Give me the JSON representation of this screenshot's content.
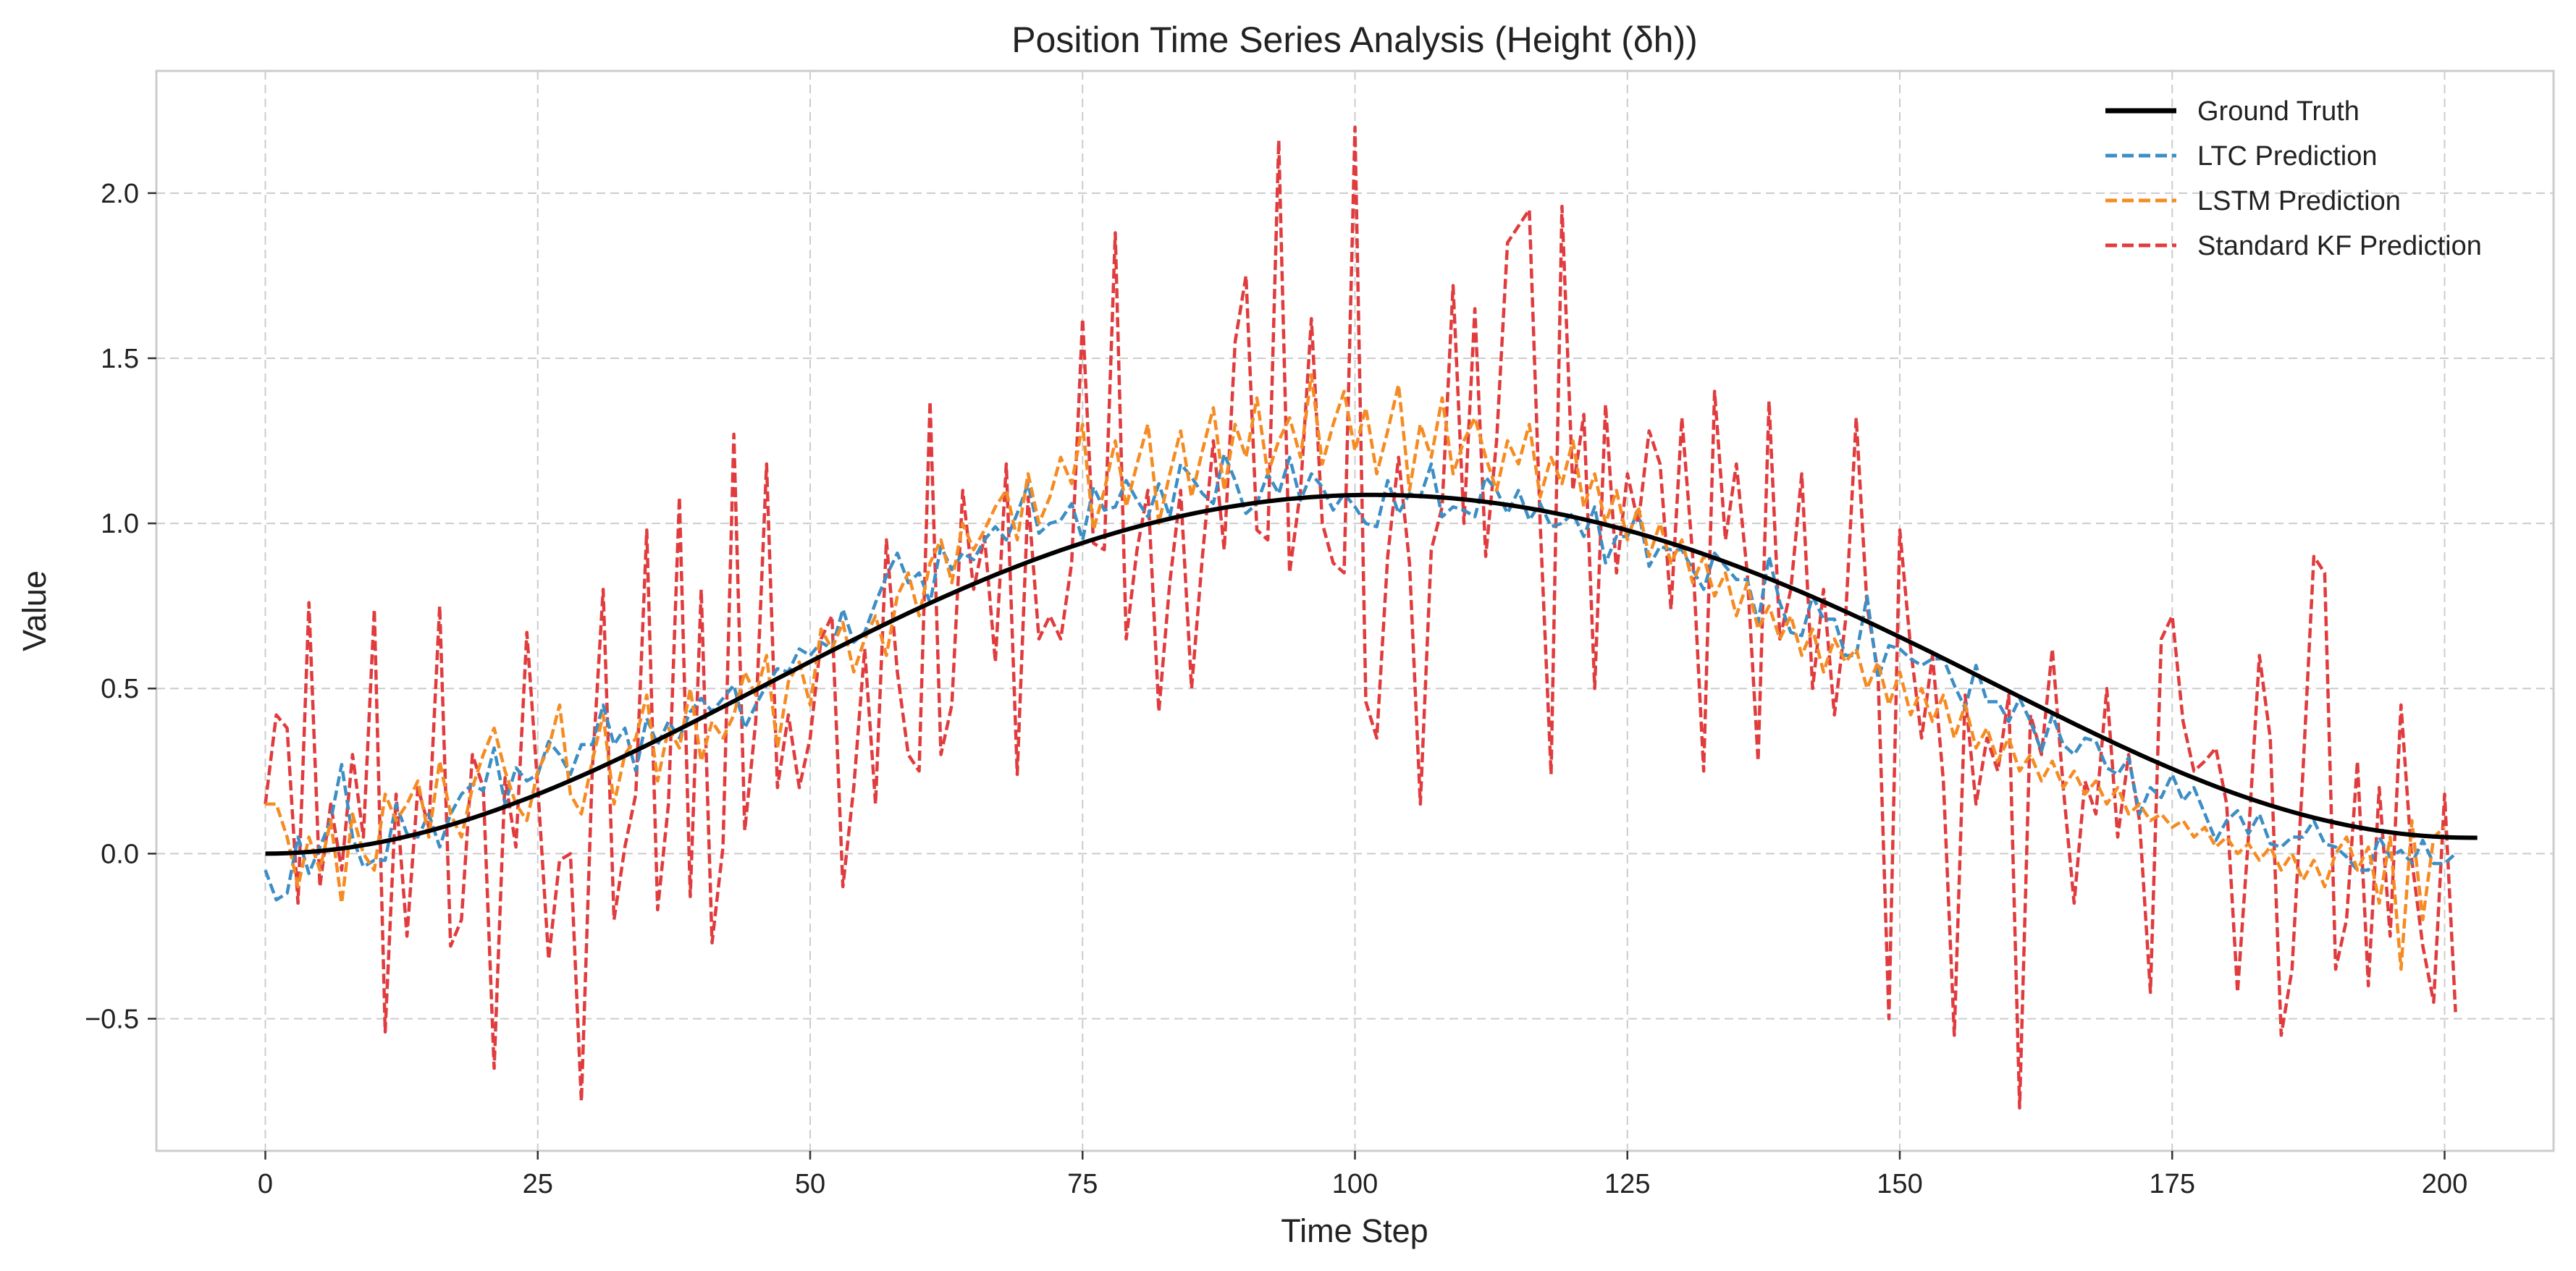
{
  "chart_data": {
    "type": "line",
    "title": "Position Time Series Analysis (Height (δh))",
    "xlabel": "Time Step",
    "ylabel": "Value",
    "xlim": [
      -10,
      210
    ],
    "ylim": [
      -0.9,
      2.37
    ],
    "xticks": [
      0,
      25,
      50,
      75,
      100,
      125,
      150,
      175,
      200
    ],
    "yticks": [
      -0.5,
      0.0,
      0.5,
      1.0,
      1.5,
      2.0
    ],
    "ytick_labels": [
      "−0.5",
      "0.0",
      "0.5",
      "1.0",
      "1.5",
      "2.0"
    ],
    "grid": true,
    "legend_position": "top-right",
    "series": [
      {
        "name": "Ground Truth",
        "color": "#000000",
        "style": "solid",
        "x_start": 0,
        "x_step": 1,
        "values": [
          0.0,
          0.0003,
          0.0013,
          0.0029,
          0.0051,
          0.008,
          0.0115,
          0.0155,
          0.0202,
          0.0255,
          0.0313,
          0.0377,
          0.0446,
          0.0521,
          0.0601,
          0.0686,
          0.0777,
          0.0872,
          0.0972,
          0.1077,
          0.1187,
          0.1301,
          0.1419,
          0.1541,
          0.1668,
          0.1798,
          0.1932,
          0.207,
          0.2211,
          0.2355,
          0.2503,
          0.2653,
          0.2806,
          0.2962,
          0.312,
          0.328,
          0.3442,
          0.3606,
          0.3771,
          0.3938,
          0.4106,
          0.4275,
          0.4445,
          0.4615,
          0.4786,
          0.4957,
          0.5129,
          0.53,
          0.547,
          0.5641,
          0.5811,
          0.598,
          0.6148,
          0.6315,
          0.648,
          0.6644,
          0.6806,
          0.6966,
          0.7125,
          0.7281,
          0.7435,
          0.7587,
          0.7736,
          0.7883,
          0.8027,
          0.8168,
          0.8306,
          0.8442,
          0.8574,
          0.8703,
          0.8829,
          0.8952,
          0.9071,
          0.9187,
          0.9299,
          0.9408,
          0.9513,
          0.9614,
          0.9712,
          0.9806,
          0.9896,
          0.9982,
          1.0064,
          1.0143,
          1.0217,
          1.0288,
          1.0354,
          1.0417,
          1.0475,
          1.0529,
          1.0579,
          1.0626,
          1.0668,
          1.0706,
          1.074,
          1.0769,
          1.0795,
          1.0816,
          1.0834,
          1.0847,
          1.0856,
          1.0861,
          1.0862,
          1.0859,
          1.0852,
          1.0841,
          1.0826,
          1.0807,
          1.0784,
          1.0757,
          1.0726,
          1.069,
          1.0651,
          1.0608,
          1.0561,
          1.051,
          1.0455,
          1.0396,
          1.0333,
          1.0267,
          1.0197,
          1.0123,
          1.0045,
          0.9963,
          0.9878,
          0.9789,
          0.9697,
          0.9601,
          0.9501,
          0.9398,
          0.9292,
          0.9182,
          0.9069,
          0.8953,
          0.8833,
          0.8711,
          0.8585,
          0.8457,
          0.8325,
          0.8191,
          0.8054,
          0.7915,
          0.7773,
          0.7628,
          0.7482,
          0.7333,
          0.7182,
          0.7029,
          0.6874,
          0.6717,
          0.6559,
          0.6399,
          0.6238,
          0.6076,
          0.5912,
          0.5748,
          0.5583,
          0.5417,
          0.5251,
          0.5085,
          0.4919,
          0.4753,
          0.4587,
          0.4422,
          0.4258,
          0.4095,
          0.3933,
          0.3773,
          0.3614,
          0.3457,
          0.3302,
          0.315,
          0.2999,
          0.2852,
          0.2707,
          0.2566,
          0.2428,
          0.2293,
          0.2162,
          0.2034,
          0.1911,
          0.1792,
          0.1677,
          0.1567,
          0.1461,
          0.1361,
          0.1265,
          0.1174,
          0.1089,
          0.1009,
          0.0934,
          0.0865,
          0.0801,
          0.0743,
          0.0691,
          0.0645,
          0.0604,
          0.0569,
          0.054,
          0.0517,
          0.0499,
          0.0487,
          0.0481,
          0.048
        ]
      },
      {
        "name": "LTC Prediction",
        "color": "#3d8ec4",
        "style": "dashed",
        "x_start": 0,
        "x_step": 1,
        "values": [
          -0.05,
          -0.14,
          -0.12,
          0.05,
          -0.06,
          0.02,
          0.1,
          0.27,
          0.05,
          -0.04,
          -0.02,
          -0.02,
          0.15,
          0.06,
          0.05,
          0.12,
          0.02,
          0.12,
          0.18,
          0.21,
          0.19,
          0.32,
          0.15,
          0.26,
          0.22,
          0.24,
          0.34,
          0.3,
          0.24,
          0.33,
          0.33,
          0.45,
          0.33,
          0.38,
          0.25,
          0.41,
          0.33,
          0.4,
          0.35,
          0.43,
          0.47,
          0.43,
          0.47,
          0.51,
          0.38,
          0.45,
          0.51,
          0.56,
          0.55,
          0.62,
          0.6,
          0.64,
          0.62,
          0.74,
          0.64,
          0.67,
          0.76,
          0.84,
          0.91,
          0.82,
          0.85,
          0.76,
          0.93,
          0.86,
          0.91,
          0.89,
          0.95,
          0.99,
          0.95,
          1.03,
          1.12,
          0.97,
          1.0,
          1.01,
          1.06,
          0.95,
          1.11,
          1.04,
          1.05,
          1.13,
          1.07,
          1.02,
          1.12,
          1.02,
          1.18,
          1.14,
          1.09,
          1.06,
          1.21,
          1.13,
          1.03,
          1.06,
          1.15,
          1.09,
          1.2,
          1.07,
          1.15,
          1.11,
          1.04,
          1.09,
          1.05,
          1.0,
          0.99,
          1.13,
          1.03,
          1.09,
          1.08,
          1.18,
          1.02,
          1.05,
          1.04,
          1.02,
          1.14,
          1.1,
          1.03,
          1.1,
          1.01,
          1.06,
          0.99,
          1.0,
          1.03,
          0.96,
          1.05,
          0.88,
          0.96,
          0.96,
          1.04,
          0.87,
          0.93,
          0.92,
          0.92,
          0.86,
          0.8,
          0.91,
          0.87,
          0.83,
          0.83,
          0.7,
          0.9,
          0.76,
          0.67,
          0.66,
          0.78,
          0.71,
          0.71,
          0.6,
          0.6,
          0.78,
          0.53,
          0.63,
          0.62,
          0.59,
          0.57,
          0.59,
          0.59,
          0.51,
          0.44,
          0.57,
          0.46,
          0.46,
          0.4,
          0.47,
          0.4,
          0.31,
          0.42,
          0.33,
          0.3,
          0.35,
          0.34,
          0.26,
          0.24,
          0.29,
          0.12,
          0.2,
          0.17,
          0.24,
          0.16,
          0.2,
          0.12,
          0.04,
          0.1,
          0.13,
          0.06,
          0.12,
          0.03,
          0.02,
          0.05,
          0.05,
          0.1,
          0.03,
          0.02,
          -0.01,
          -0.05,
          -0.05,
          0.05,
          -0.01,
          0.01,
          -0.03,
          0.04,
          -0.03,
          -0.03,
          0.0
        ]
      },
      {
        "name": "LSTM Prediction",
        "color": "#f58c23",
        "style": "dashed",
        "x_start": 0,
        "x_step": 1,
        "values": [
          0.15,
          0.15,
          0.05,
          -0.1,
          0.05,
          -0.05,
          0.1,
          -0.15,
          0.12,
          0.0,
          -0.05,
          0.18,
          0.1,
          0.15,
          0.22,
          0.05,
          0.28,
          0.12,
          0.05,
          0.2,
          0.3,
          0.38,
          0.25,
          0.15,
          0.1,
          0.25,
          0.32,
          0.45,
          0.18,
          0.12,
          0.28,
          0.42,
          0.15,
          0.3,
          0.35,
          0.48,
          0.22,
          0.38,
          0.32,
          0.5,
          0.28,
          0.4,
          0.35,
          0.42,
          0.55,
          0.48,
          0.6,
          0.32,
          0.52,
          0.58,
          0.45,
          0.68,
          0.62,
          0.7,
          0.55,
          0.65,
          0.72,
          0.6,
          0.78,
          0.85,
          0.72,
          0.88,
          0.95,
          0.82,
          1.0,
          0.92,
          0.98,
          1.05,
          1.1,
          0.95,
          1.15,
          1.0,
          1.08,
          1.2,
          1.12,
          1.3,
          0.98,
          1.1,
          1.25,
          1.05,
          1.18,
          1.3,
          1.0,
          1.15,
          1.28,
          1.08,
          1.22,
          1.35,
          1.1,
          1.3,
          1.2,
          1.38,
          1.15,
          1.25,
          1.32,
          1.2,
          1.45,
          1.18,
          1.3,
          1.4,
          1.22,
          1.35,
          1.15,
          1.28,
          1.42,
          1.1,
          1.3,
          1.2,
          1.38,
          1.15,
          1.25,
          1.32,
          1.2,
          1.1,
          1.25,
          1.18,
          1.3,
          1.08,
          1.2,
          1.12,
          1.25,
          1.05,
          1.15,
          1.0,
          1.1,
          0.95,
          1.05,
          0.9,
          1.0,
          0.88,
          0.95,
          0.82,
          0.9,
          0.78,
          0.85,
          0.72,
          0.82,
          0.68,
          0.75,
          0.65,
          0.72,
          0.6,
          0.68,
          0.55,
          0.65,
          0.58,
          0.62,
          0.5,
          0.58,
          0.45,
          0.55,
          0.42,
          0.5,
          0.4,
          0.48,
          0.35,
          0.45,
          0.32,
          0.38,
          0.28,
          0.35,
          0.25,
          0.3,
          0.22,
          0.28,
          0.2,
          0.25,
          0.18,
          0.22,
          0.15,
          0.2,
          0.12,
          0.15,
          0.1,
          0.12,
          0.08,
          0.1,
          0.05,
          0.08,
          0.02,
          0.05,
          0.0,
          0.03,
          -0.02,
          0.02,
          -0.05,
          0.0,
          -0.08,
          -0.02,
          -0.1,
          0.0,
          0.05,
          -0.05,
          0.02,
          -0.15,
          0.05,
          -0.35,
          0.1,
          -0.2,
          0.05,
          0.08
        ]
      },
      {
        "name": "Standard KF Prediction",
        "color": "#e03c3e",
        "style": "dashed",
        "x_start": 0,
        "x_step": 1,
        "values": [
          0.15,
          0.42,
          0.38,
          -0.15,
          0.76,
          -0.1,
          0.15,
          -0.05,
          0.3,
          0.05,
          0.74,
          -0.54,
          0.18,
          -0.25,
          0.2,
          0.08,
          0.75,
          -0.28,
          -0.2,
          0.3,
          0.2,
          -0.65,
          0.23,
          0.02,
          0.67,
          0.2,
          -0.32,
          -0.02,
          0.0,
          -0.75,
          0.25,
          0.8,
          -0.2,
          0.02,
          0.18,
          0.98,
          -0.17,
          0.15,
          1.08,
          -0.13,
          0.8,
          -0.27,
          0.02,
          1.27,
          0.07,
          0.4,
          1.18,
          0.2,
          0.42,
          0.2,
          0.35,
          0.65,
          0.72,
          -0.1,
          0.2,
          0.62,
          0.15,
          0.95,
          0.55,
          0.3,
          0.25,
          1.37,
          0.3,
          0.45,
          1.1,
          0.8,
          0.96,
          0.58,
          1.18,
          0.24,
          1.08,
          0.65,
          0.72,
          0.65,
          0.88,
          1.62,
          0.94,
          0.92,
          1.88,
          0.65,
          0.92,
          1.1,
          0.43,
          0.82,
          1.1,
          0.5,
          0.9,
          1.25,
          0.92,
          1.55,
          1.75,
          0.98,
          0.95,
          2.16,
          0.85,
          1.1,
          1.62,
          1.0,
          0.88,
          0.85,
          2.2,
          0.46,
          0.35,
          0.9,
          1.2,
          0.88,
          0.15,
          0.92,
          1.05,
          1.72,
          1.0,
          1.65,
          0.9,
          1.25,
          1.85,
          1.9,
          1.95,
          1.0,
          0.24,
          1.96,
          1.1,
          1.33,
          0.5,
          1.36,
          0.85,
          1.15,
          1.0,
          1.28,
          1.18,
          0.74,
          1.32,
          0.9,
          0.25,
          1.4,
          0.95,
          1.18,
          0.85,
          0.28,
          1.37,
          0.65,
          0.8,
          1.15,
          0.5,
          0.8,
          0.42,
          0.7,
          1.32,
          0.75,
          0.55,
          -0.5,
          0.98,
          0.62,
          0.35,
          0.6,
          0.22,
          -0.55,
          0.48,
          0.15,
          0.35,
          0.25,
          0.48,
          -0.77,
          0.42,
          0.3,
          0.62,
          0.2,
          -0.15,
          0.22,
          0.12,
          0.5,
          0.05,
          0.3,
          0.1,
          -0.42,
          0.65,
          0.72,
          0.4,
          0.25,
          0.28,
          0.32,
          0.15,
          -0.42,
          0.05,
          0.6,
          0.35,
          -0.55,
          -0.35,
          0.25,
          0.9,
          0.85,
          -0.35,
          -0.2,
          0.28,
          -0.4,
          0.2,
          -0.25,
          0.45,
          -0.02,
          -0.28,
          -0.45,
          0.18,
          -0.48
        ]
      }
    ]
  }
}
